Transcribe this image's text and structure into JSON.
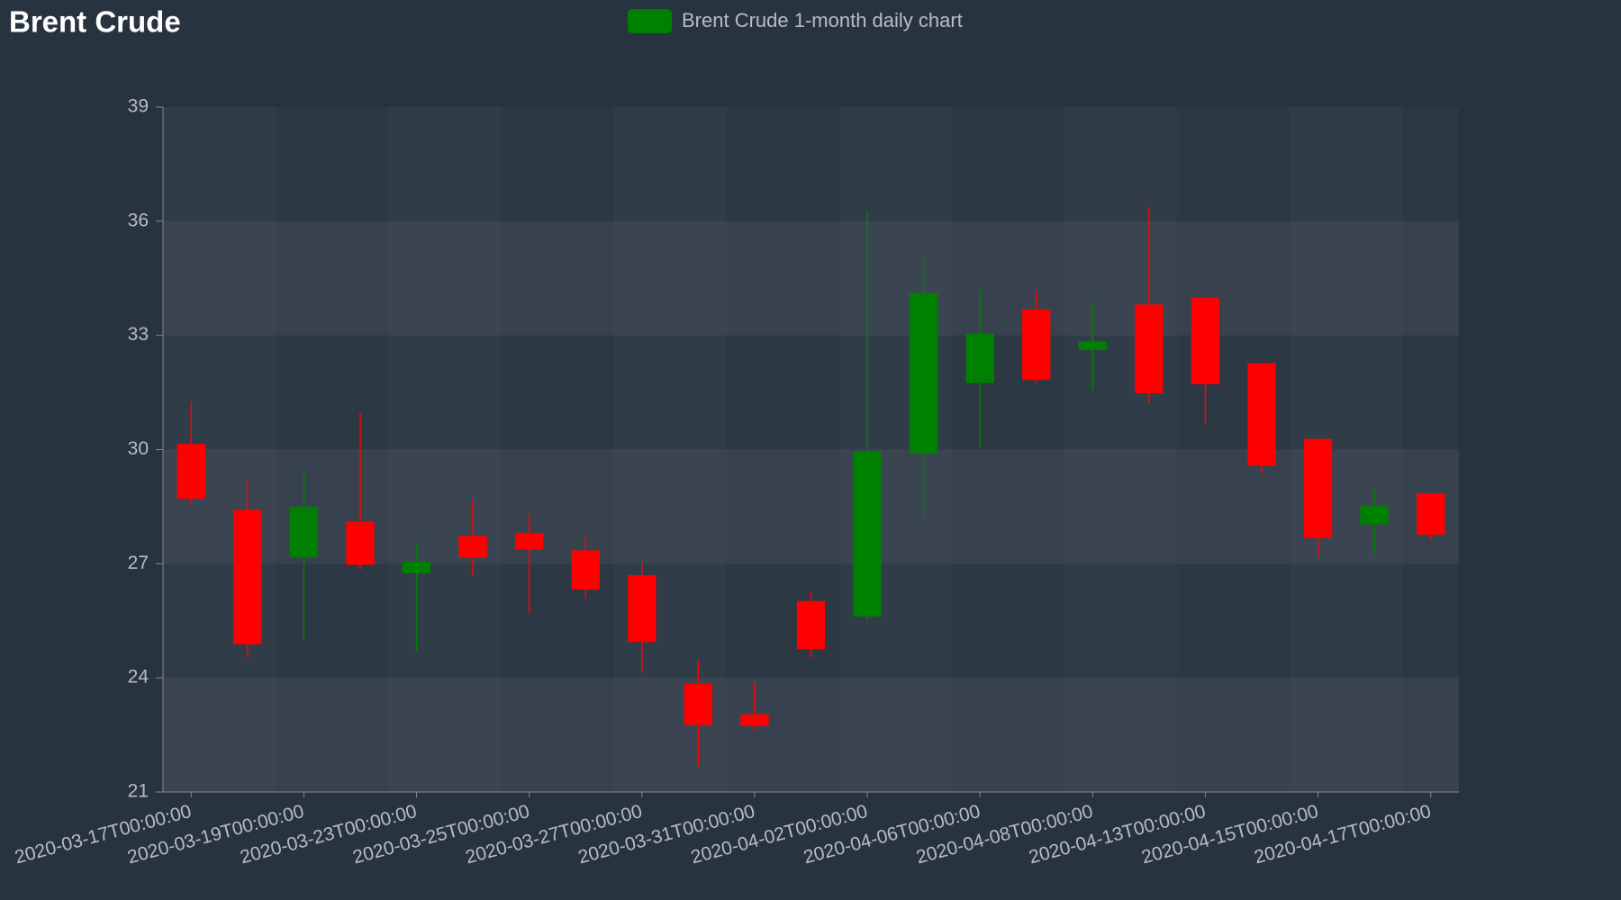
{
  "chart_data": {
    "type": "candlestick",
    "title": "Brent Crude",
    "categories": [
      "2020-03-17T00:00:00",
      null,
      "2020-03-19T00:00:00",
      null,
      "2020-03-23T00:00:00",
      null,
      "2020-03-25T00:00:00",
      null,
      "2020-03-27T00:00:00",
      null,
      "2020-03-31T00:00:00",
      null,
      "2020-04-02T00:00:00",
      null,
      "2020-04-06T00:00:00",
      null,
      "2020-04-08T00:00:00",
      null,
      "2020-04-13T00:00:00",
      null,
      "2020-04-15T00:00:00",
      null,
      "2020-04-17T00:00:00"
    ],
    "series": [
      {
        "name": "Brent Crude 1-month daily chart",
        "color": "#008000",
        "down_color": "#ff0000",
        "open": [
          30.15,
          28.41,
          27.16,
          28.11,
          26.75,
          27.73,
          27.81,
          27.35,
          26.7,
          23.85,
          23.04,
          26.02,
          25.61,
          29.9,
          31.75,
          33.68,
          32.62,
          33.81,
          34.0,
          32.27,
          30.28,
          28.03,
          28.85
        ],
        "high": [
          31.26,
          29.23,
          29.42,
          30.96,
          27.57,
          28.66,
          28.3,
          27.76,
          27.03,
          24.45,
          23.88,
          26.29,
          36.28,
          35.01,
          34.22,
          34.17,
          33.87,
          36.39,
          34.0,
          32.27,
          30.28,
          29.01,
          28.85
        ],
        "low": [
          28.52,
          24.53,
          24.96,
          26.84,
          24.69,
          26.7,
          25.7,
          26.08,
          24.15,
          21.68,
          22.6,
          24.53,
          25.51,
          28.27,
          30.04,
          31.75,
          31.56,
          31.21,
          30.64,
          29.36,
          27.16,
          27.22,
          27.62
        ],
        "close": [
          28.71,
          24.88,
          28.49,
          26.97,
          27.05,
          27.16,
          27.38,
          26.32,
          24.94,
          22.76,
          22.74,
          24.75,
          29.96,
          34.11,
          33.05,
          31.83,
          32.84,
          31.48,
          31.72,
          29.58,
          27.68,
          28.52,
          27.76
        ]
      }
    ],
    "ylim": [
      21,
      39
    ],
    "yticks": [
      21,
      24,
      27,
      30,
      33,
      36,
      39
    ]
  }
}
